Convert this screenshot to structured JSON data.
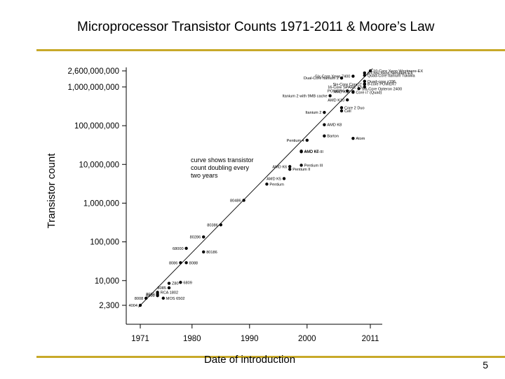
{
  "slide": {
    "title": "Microprocessor Transistor Counts 1971-2011 & Moore’s Law",
    "number": "5",
    "accent_color": "#c8a929"
  },
  "chart_data": {
    "type": "scatter",
    "xlabel": "Date of introduction",
    "ylabel": "Transistor count",
    "x_range": [
      1971,
      2011
    ],
    "x_ticks": [
      1971,
      1980,
      1990,
      2000,
      2011
    ],
    "y_scale": "log",
    "y_ticks": [
      {
        "value": 2300,
        "label": "2,300"
      },
      {
        "value": 10000,
        "label": "10,000"
      },
      {
        "value": 100000,
        "label": "100,000"
      },
      {
        "value": 1000000,
        "label": "1,000,000"
      },
      {
        "value": 10000000,
        "label": "10,000,000"
      },
      {
        "value": 100000000,
        "label": "100,000,000"
      },
      {
        "value": 1000000000,
        "label": "1,000,000,000"
      },
      {
        "value": 2600000000,
        "label": "2,600,000,000"
      }
    ],
    "annotation": [
      "curve shows transistor",
      "count doubling every",
      "two years"
    ],
    "trend_line": {
      "x": [
        1971,
        2011
      ],
      "y": [
        2300,
        2600000000
      ]
    },
    "points": [
      {
        "label": "4004",
        "x": 1971,
        "y": 2300
      },
      {
        "label": "8008",
        "x": 1972,
        "y": 3500
      },
      {
        "label": "8080",
        "x": 1974,
        "y": 4500
      },
      {
        "label": "6800",
        "x": 1974,
        "y": 4100
      },
      {
        "label": "RCA 1802",
        "x": 1974,
        "y": 5000
      },
      {
        "label": "MOS 6502",
        "x": 1975,
        "y": 3510
      },
      {
        "label": "Z80",
        "x": 1976,
        "y": 8500
      },
      {
        "label": "6809",
        "x": 1978,
        "y": 9000
      },
      {
        "label": "8085",
        "x": 1976,
        "y": 6500
      },
      {
        "label": "8086",
        "x": 1978,
        "y": 29000
      },
      {
        "label": "8088",
        "x": 1979,
        "y": 29000
      },
      {
        "label": "68000",
        "x": 1979,
        "y": 68000
      },
      {
        "label": "80186",
        "x": 1982,
        "y": 55000
      },
      {
        "label": "80286",
        "x": 1982,
        "y": 134000
      },
      {
        "label": "80386",
        "x": 1985,
        "y": 275000
      },
      {
        "label": "80486",
        "x": 1989,
        "y": 1180000
      },
      {
        "label": "Pentium",
        "x": 1993,
        "y": 3100000
      },
      {
        "label": "AMD K5",
        "x": 1996,
        "y": 4300000
      },
      {
        "label": "Pentium II",
        "x": 1997,
        "y": 7500000
      },
      {
        "label": "AMD K6",
        "x": 1997,
        "y": 8800000
      },
      {
        "label": "Pentium III",
        "x": 1999,
        "y": 9500000
      },
      {
        "label": "AMD K6-III",
        "x": 1999,
        "y": 21300000
      },
      {
        "label": "AMD K7",
        "x": 1999,
        "y": 22000000
      },
      {
        "label": "Pentium 4",
        "x": 2000,
        "y": 42000000
      },
      {
        "label": "Barton",
        "x": 2003,
        "y": 54300000
      },
      {
        "label": "Atom",
        "x": 2008,
        "y": 47000000
      },
      {
        "label": "AMD K8",
        "x": 2003,
        "y": 105900000
      },
      {
        "label": "Itanium 2",
        "x": 2003,
        "y": 220000000
      },
      {
        "label": "Cell",
        "x": 2006,
        "y": 241000000
      },
      {
        "label": "Core 2 Duo",
        "x": 2006,
        "y": 291000000
      },
      {
        "label": "Itanium 2 with 9MB cache",
        "x": 2004,
        "y": 592000000
      },
      {
        "label": "AMD K10",
        "x": 2007,
        "y": 463000000
      },
      {
        "label": "Core i7 (Quad)",
        "x": 2008,
        "y": 731000000
      },
      {
        "label": "POWER6",
        "x": 2007,
        "y": 789000000
      },
      {
        "label": "Six-Core Opteron 2400",
        "x": 2009,
        "y": 904000000
      },
      {
        "label": "Dual-Core Itanium 2",
        "x": 2006,
        "y": 1700000000
      },
      {
        "label": "AMD K10",
        "x": 2008,
        "y": 758000000
      },
      {
        "label": "Quad-Core Itanium Tukwila",
        "x": 2010,
        "y": 2000000000
      },
      {
        "label": "8-Core Xeon Nehalem-EX",
        "x": 2010,
        "y": 2300000000
      },
      {
        "label": "Quad-core z196",
        "x": 2010,
        "y": 1400000000
      },
      {
        "label": "8-core POWER7",
        "x": 2010,
        "y": 1200000000
      },
      {
        "label": "Six-Core Xeon 7400",
        "x": 2008,
        "y": 1900000000
      },
      {
        "label": "Six-Core Core i7",
        "x": 2010,
        "y": 1170000000
      },
      {
        "label": "10-Core Xeon Westmere-EX",
        "x": 2011,
        "y": 2600000000
      },
      {
        "label": "16-Core SPARC T3",
        "x": 2010,
        "y": 1000000000
      }
    ]
  }
}
